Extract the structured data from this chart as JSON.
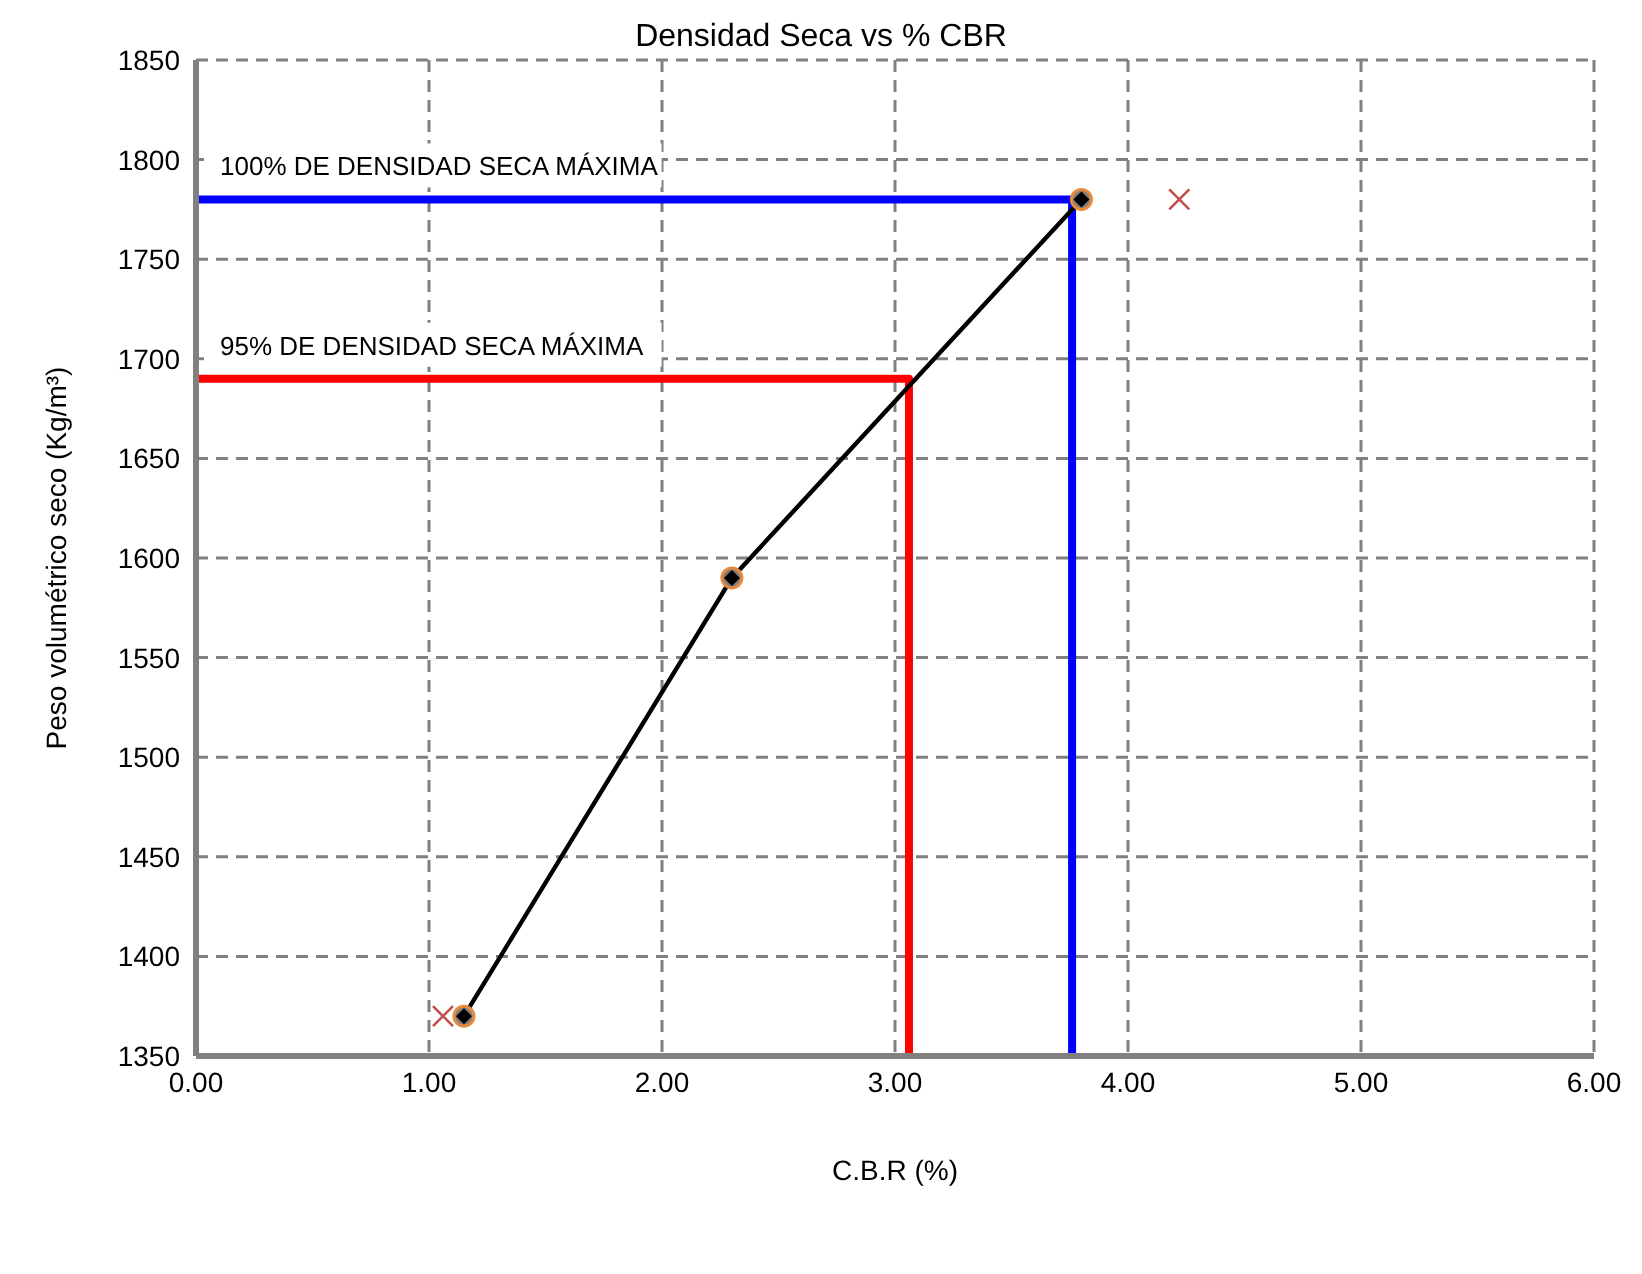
{
  "chart_data": {
    "type": "line",
    "title": "Densidad Seca vs % CBR",
    "xlabel": "C.B.R (%)",
    "ylabel": "Peso volumétrico seco (Kg/m³)",
    "xlim": [
      0,
      6
    ],
    "xticks": [
      {
        "value": 0,
        "label": "0.00"
      },
      {
        "value": 1,
        "label": "1.00"
      },
      {
        "value": 2,
        "label": "2.00"
      },
      {
        "value": 3,
        "label": "3.00"
      },
      {
        "value": 4,
        "label": "4.00"
      },
      {
        "value": 5,
        "label": "5.00"
      },
      {
        "value": 6,
        "label": "6.00"
      }
    ],
    "ylim": [
      1350,
      1850
    ],
    "yticks": [
      1350,
      1400,
      1450,
      1500,
      1550,
      1600,
      1650,
      1700,
      1750,
      1800,
      1850
    ],
    "grid": true,
    "legend": false,
    "series": [
      {
        "name": "100% DE DENSIDAD SECA MÁXIMA",
        "color": "#0000ff",
        "x": [
          0,
          3.76,
          3.76
        ],
        "values": [
          1780,
          1780,
          1350
        ],
        "marker": "none"
      },
      {
        "name": "95%  DE DENSIDAD SECA MÁXIMA",
        "color": "#ff0000",
        "x": [
          0,
          3.06,
          3.06
        ],
        "values": [
          1690,
          1690,
          1350
        ],
        "marker": "none"
      },
      {
        "type": "scatter",
        "color": "#c0504d",
        "x": [
          1.06,
          2.3,
          4.22
        ],
        "values": [
          1370,
          null,
          1780
        ],
        "marker": "cross"
      },
      {
        "color": "#000000",
        "x": [
          1.15,
          2.3,
          3.8
        ],
        "values": [
          1370,
          1590,
          1780
        ],
        "marker": "diamond"
      }
    ]
  }
}
